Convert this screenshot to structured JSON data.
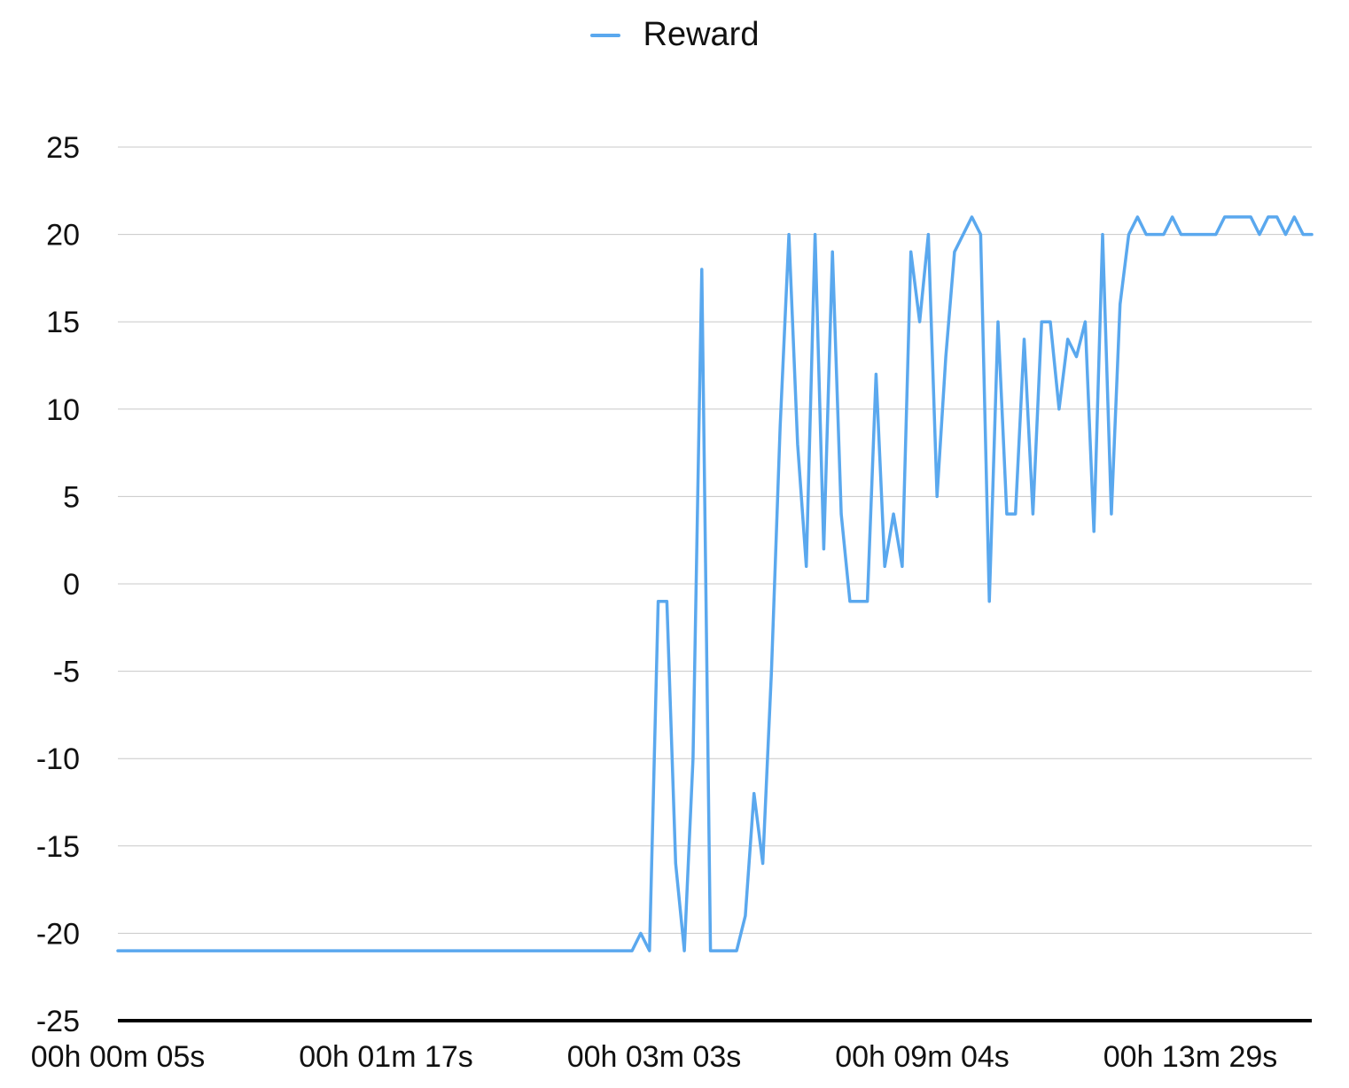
{
  "chart_data": {
    "type": "line",
    "title": "",
    "xlabel": "",
    "ylabel": "",
    "legend": "top-center",
    "grid": true,
    "ylim": [
      -25,
      25
    ],
    "yticks": [
      "25",
      "20",
      "15",
      "10",
      "5",
      "0",
      "-5",
      "-10",
      "-15",
      "-20",
      "-25"
    ],
    "xticks": [
      "00h 00m 05s",
      "00h 01m 17s",
      "00h 03m 03s",
      "00h 09m 04s",
      "00h 13m 29s"
    ],
    "series": [
      {
        "name": "Reward",
        "color": "#5aa8ee",
        "values": [
          -21,
          -21,
          -21,
          -21,
          -21,
          -21,
          -21,
          -21,
          -21,
          -21,
          -21,
          -21,
          -21,
          -21,
          -21,
          -21,
          -21,
          -21,
          -21,
          -21,
          -21,
          -21,
          -21,
          -21,
          -21,
          -21,
          -21,
          -21,
          -21,
          -21,
          -21,
          -21,
          -21,
          -21,
          -21,
          -21,
          -21,
          -21,
          -21,
          -21,
          -21,
          -21,
          -21,
          -21,
          -21,
          -21,
          -21,
          -21,
          -21,
          -21,
          -21,
          -21,
          -21,
          -21,
          -21,
          -21,
          -21,
          -21,
          -21,
          -21,
          -20,
          -21,
          -1,
          -1,
          -16,
          -21,
          -10,
          18,
          -21,
          -21,
          -21,
          -21,
          -19,
          -12,
          -16,
          -5,
          9,
          20,
          8,
          1,
          20,
          2,
          19,
          4,
          -1,
          -1,
          -1,
          12,
          1,
          4,
          1,
          19,
          15,
          20,
          5,
          13,
          19,
          20,
          21,
          20,
          -1,
          15,
          4,
          4,
          14,
          4,
          15,
          15,
          10,
          14,
          13,
          15,
          3,
          20,
          4,
          16,
          20,
          21,
          20,
          20,
          20,
          21,
          20,
          20,
          20,
          20,
          20,
          21,
          21,
          21,
          21,
          20,
          21,
          21,
          20,
          21,
          20,
          20
        ]
      }
    ]
  }
}
